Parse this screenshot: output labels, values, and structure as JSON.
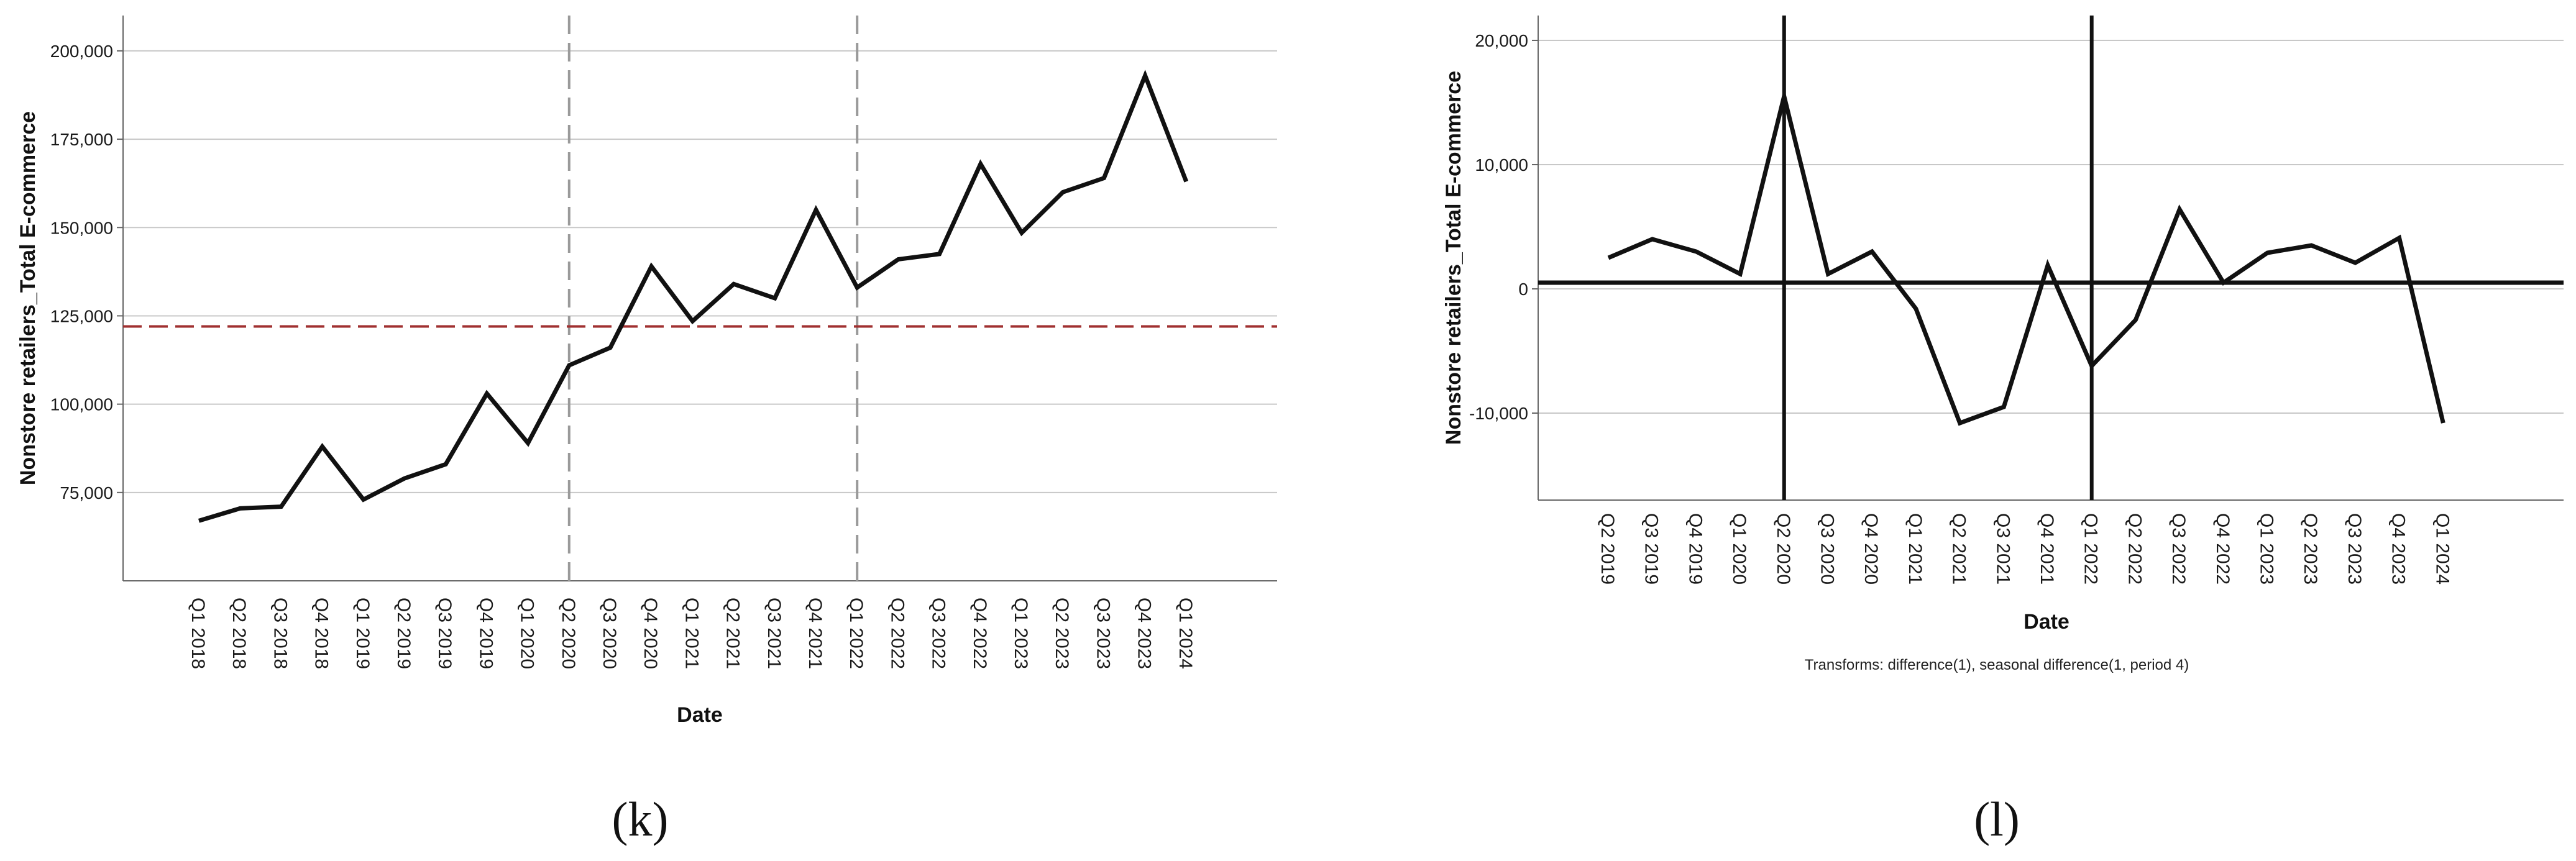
{
  "chart_data": [
    {
      "type": "line",
      "panel_label": "(k)",
      "xlabel": "Date",
      "ylabel": "Nonstore retailers_Total E-commerce",
      "ylim": [
        50000,
        210000
      ],
      "yticks": [
        75000,
        100000,
        125000,
        150000,
        175000,
        200000
      ],
      "ytick_labels": [
        "75,000",
        "100,000",
        "125,000",
        "150,000",
        "175,000",
        "200,000"
      ],
      "grid": "horizontal",
      "categories": [
        "Q1 2018",
        "Q2 2018",
        "Q3 2018",
        "Q4 2018",
        "Q1 2019",
        "Q2 2019",
        "Q3 2019",
        "Q4 2019",
        "Q1 2020",
        "Q2 2020",
        "Q3 2020",
        "Q4 2020",
        "Q1 2021",
        "Q2 2021",
        "Q3 2021",
        "Q4 2021",
        "Q1 2022",
        "Q2 2022",
        "Q3 2022",
        "Q4 2022",
        "Q1 2023",
        "Q2 2023",
        "Q3 2023",
        "Q4 2023",
        "Q1 2024"
      ],
      "values": [
        67000,
        70500,
        71000,
        88000,
        73000,
        79000,
        83000,
        103000,
        89000,
        111000,
        116000,
        139000,
        123500,
        134000,
        130000,
        155000,
        133000,
        141000,
        142500,
        168000,
        148500,
        160000,
        164000,
        193000,
        163000
      ],
      "reference_line": {
        "value": 122000,
        "orientation": "horizontal",
        "style": "dashed",
        "color": "#a03030"
      },
      "vertical_markers": [
        {
          "category": "Q2 2020",
          "style": "dashed"
        },
        {
          "category": "Q1 2022",
          "style": "dashed"
        }
      ],
      "colors": {
        "line": "#111111",
        "grid": "#c8c8c8",
        "marker": "#9a9a9a"
      }
    },
    {
      "type": "line",
      "panel_label": "(l)",
      "xlabel": "Date",
      "ylabel": "Nonstore retailers_Total E-commerce",
      "note": "Transforms: difference(1), seasonal difference(1, period 4)",
      "ylim": [
        -17000,
        22000
      ],
      "yticks": [
        -10000,
        0,
        10000,
        20000
      ],
      "ytick_labels": [
        "-10,000",
        "0",
        "10,000",
        "20,000"
      ],
      "grid": "horizontal",
      "categories": [
        "Q2 2019",
        "Q3 2019",
        "Q4 2019",
        "Q1 2020",
        "Q2 2020",
        "Q3 2020",
        "Q4 2020",
        "Q1 2021",
        "Q2 2021",
        "Q3 2021",
        "Q4 2021",
        "Q1 2022",
        "Q2 2022",
        "Q3 2022",
        "Q4 2022",
        "Q1 2023",
        "Q2 2023",
        "Q3 2023",
        "Q4 2023",
        "Q1 2024"
      ],
      "values": [
        2500,
        4000,
        3000,
        1200,
        15500,
        1200,
        3000,
        -1600,
        -10800,
        -9500,
        1900,
        -6200,
        -2500,
        6400,
        500,
        2900,
        3500,
        2100,
        4100,
        -10800
      ],
      "reference_line": {
        "value": 500,
        "orientation": "horizontal",
        "style": "solid",
        "color": "#111111"
      },
      "vertical_markers": [
        {
          "category": "Q2 2020",
          "style": "solid"
        },
        {
          "category": "Q1 2022",
          "style": "solid"
        }
      ],
      "colors": {
        "line": "#111111",
        "grid": "#c8c8c8",
        "marker": "#111111"
      }
    }
  ]
}
